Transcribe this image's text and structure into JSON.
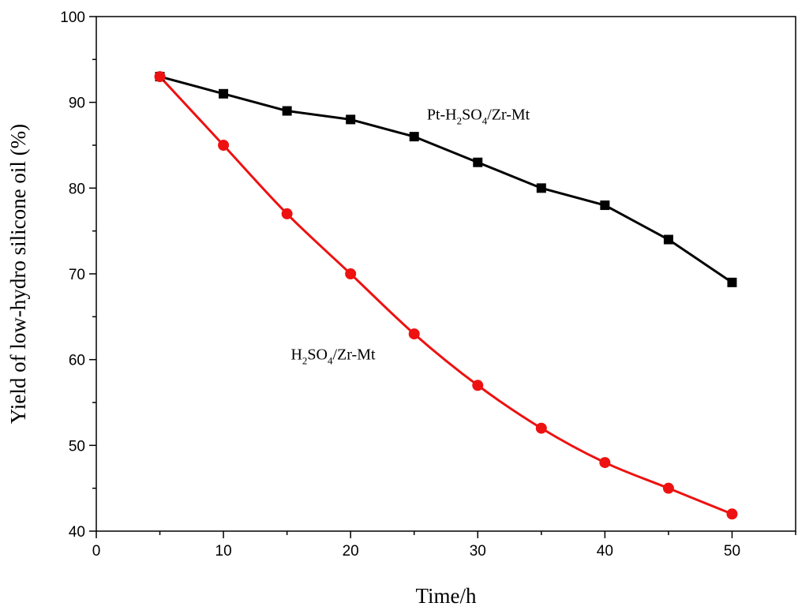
{
  "chart_data": {
    "type": "line",
    "xlabel": "Time/h",
    "ylabel": "Yield of low-hydro silicone oil (%)",
    "xlim": [
      0,
      55
    ],
    "ylim": [
      40,
      100
    ],
    "x_ticks": [
      0,
      10,
      20,
      30,
      40,
      50
    ],
    "y_ticks": [
      40,
      50,
      60,
      70,
      80,
      90,
      100
    ],
    "x_minor_step": 5,
    "y_minor_step": 5,
    "grid": false,
    "legend": "inline-labels",
    "series": [
      {
        "name": "Pt-H2SO4/Zr-Mt",
        "label_parts": [
          {
            "text": "Pt-H",
            "sub": false
          },
          {
            "text": "2",
            "sub": true
          },
          {
            "text": "SO",
            "sub": false
          },
          {
            "text": "4",
            "sub": true
          },
          {
            "text": "/Zr-Mt",
            "sub": false
          }
        ],
        "label_anchor": {
          "x": 26,
          "y": 88
        },
        "marker": "square",
        "color": "#000000",
        "x": [
          5,
          10,
          15,
          20,
          25,
          30,
          35,
          40,
          45,
          50
        ],
        "values": [
          93,
          91,
          89,
          88,
          86,
          83,
          80,
          78,
          74,
          69
        ]
      },
      {
        "name": "H2SO4/Zr-Mt",
        "label_parts": [
          {
            "text": "H",
            "sub": false
          },
          {
            "text": "2",
            "sub": true
          },
          {
            "text": "SO",
            "sub": false
          },
          {
            "text": "4",
            "sub": true
          },
          {
            "text": "/Zr-Mt",
            "sub": false
          }
        ],
        "label_anchor": {
          "x": 15.3,
          "y": 60
        },
        "marker": "circle",
        "color": "#ee1111",
        "x": [
          5,
          10,
          15,
          20,
          25,
          30,
          35,
          40,
          45,
          50
        ],
        "values": [
          93,
          85,
          77,
          70,
          63,
          57,
          52,
          48,
          45,
          42
        ]
      }
    ]
  }
}
